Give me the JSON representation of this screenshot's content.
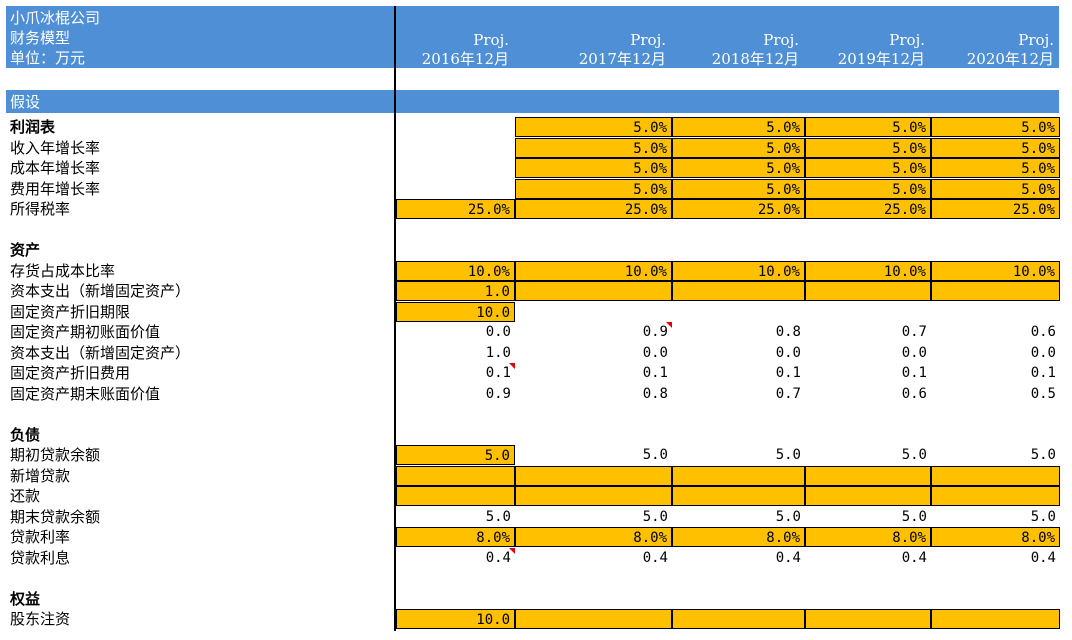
{
  "header": {
    "company": "小爪冰棍公司",
    "model": "财务模型",
    "unit": "单位：万元",
    "columns": [
      {
        "proj": "Proj.",
        "date": "2016年12月"
      },
      {
        "proj": "Proj.",
        "date": "2017年12月"
      },
      {
        "proj": "Proj.",
        "date": "2018年12月"
      },
      {
        "proj": "Proj.",
        "date": "2019年12月"
      },
      {
        "proj": "Proj.",
        "date": "2020年12月"
      }
    ]
  },
  "section_assumptions": "假设",
  "rows": [
    {
      "label": "利润表",
      "bold": true,
      "cells": [
        null,
        {
          "v": "5.0%",
          "in": true
        },
        {
          "v": "5.0%",
          "in": true
        },
        {
          "v": "5.0%",
          "in": true
        },
        {
          "v": "5.0%",
          "in": true
        }
      ]
    },
    {
      "label": "收入年增长率",
      "cells": [
        null,
        {
          "v": "5.0%",
          "in": true
        },
        {
          "v": "5.0%",
          "in": true
        },
        {
          "v": "5.0%",
          "in": true
        },
        {
          "v": "5.0%",
          "in": true
        }
      ]
    },
    {
      "label": "成本年增长率",
      "cells": [
        null,
        {
          "v": "5.0%",
          "in": true
        },
        {
          "v": "5.0%",
          "in": true
        },
        {
          "v": "5.0%",
          "in": true
        },
        {
          "v": "5.0%",
          "in": true
        }
      ]
    },
    {
      "label": "费用年增长率",
      "cells": [
        null,
        {
          "v": "5.0%",
          "in": true
        },
        {
          "v": "5.0%",
          "in": true
        },
        {
          "v": "5.0%",
          "in": true
        },
        {
          "v": "5.0%",
          "in": true
        }
      ]
    },
    {
      "label": "所得税率",
      "cells": [
        {
          "v": "25.0%",
          "in": true
        },
        {
          "v": "25.0%",
          "in": true
        },
        {
          "v": "25.0%",
          "in": true
        },
        {
          "v": "25.0%",
          "in": true
        },
        {
          "v": "25.0%",
          "in": true
        }
      ]
    },
    {
      "label": "",
      "cells": []
    },
    {
      "label": "资产",
      "bold": true,
      "cells": []
    },
    {
      "label": "存货占成本比率",
      "cells": [
        {
          "v": "10.0%",
          "in": true
        },
        {
          "v": "10.0%",
          "in": true
        },
        {
          "v": "10.0%",
          "in": true
        },
        {
          "v": "10.0%",
          "in": true
        },
        {
          "v": "10.0%",
          "in": true
        }
      ]
    },
    {
      "label": "资本支出（新增固定资产）",
      "cells": [
        {
          "v": "1.0",
          "in": true
        },
        {
          "v": "",
          "in": true
        },
        {
          "v": "",
          "in": true
        },
        {
          "v": "",
          "in": true
        },
        {
          "v": "",
          "in": true
        }
      ]
    },
    {
      "label": "固定资产折旧期限",
      "cells": [
        {
          "v": "10.0",
          "in": true
        }
      ]
    },
    {
      "label": "固定资产期初账面价值",
      "cells": [
        {
          "v": "0.0"
        },
        {
          "v": "0.9",
          "note": true
        },
        {
          "v": "0.8"
        },
        {
          "v": "0.7"
        },
        {
          "v": "0.6"
        }
      ]
    },
    {
      "label": "资本支出（新增固定资产）",
      "cells": [
        {
          "v": "1.0"
        },
        {
          "v": "0.0"
        },
        {
          "v": "0.0"
        },
        {
          "v": "0.0"
        },
        {
          "v": "0.0"
        }
      ]
    },
    {
      "label": "固定资产折旧费用",
      "cells": [
        {
          "v": "0.1",
          "note": true
        },
        {
          "v": "0.1"
        },
        {
          "v": "0.1"
        },
        {
          "v": "0.1"
        },
        {
          "v": "0.1"
        }
      ]
    },
    {
      "label": "固定资产期末账面价值",
      "cells": [
        {
          "v": "0.9"
        },
        {
          "v": "0.8"
        },
        {
          "v": "0.7"
        },
        {
          "v": "0.6"
        },
        {
          "v": "0.5"
        }
      ]
    },
    {
      "label": "",
      "cells": []
    },
    {
      "label": "负债",
      "bold": true,
      "cells": []
    },
    {
      "label": "期初贷款余额",
      "cells": [
        {
          "v": "5.0",
          "in": true
        },
        {
          "v": "5.0"
        },
        {
          "v": "5.0"
        },
        {
          "v": "5.0"
        },
        {
          "v": "5.0"
        }
      ]
    },
    {
      "label": "新增贷款",
      "cells": [
        {
          "v": "",
          "in": true
        },
        {
          "v": "",
          "in": true
        },
        {
          "v": "",
          "in": true
        },
        {
          "v": "",
          "in": true
        },
        {
          "v": "",
          "in": true
        }
      ]
    },
    {
      "label": "还款",
      "cells": [
        {
          "v": "",
          "in": true
        },
        {
          "v": "",
          "in": true
        },
        {
          "v": "",
          "in": true
        },
        {
          "v": "",
          "in": true
        },
        {
          "v": "",
          "in": true
        }
      ]
    },
    {
      "label": "期末贷款余额",
      "cells": [
        {
          "v": "5.0"
        },
        {
          "v": "5.0"
        },
        {
          "v": "5.0"
        },
        {
          "v": "5.0"
        },
        {
          "v": "5.0"
        }
      ]
    },
    {
      "label": "贷款利率",
      "cells": [
        {
          "v": "8.0%",
          "in": true
        },
        {
          "v": "8.0%",
          "in": true
        },
        {
          "v": "8.0%",
          "in": true
        },
        {
          "v": "8.0%",
          "in": true
        },
        {
          "v": "8.0%",
          "in": true
        }
      ]
    },
    {
      "label": "贷款利息",
      "cells": [
        {
          "v": "0.4",
          "note": true
        },
        {
          "v": "0.4"
        },
        {
          "v": "0.4"
        },
        {
          "v": "0.4"
        },
        {
          "v": "0.4"
        }
      ]
    },
    {
      "label": "",
      "cells": []
    },
    {
      "label": "权益",
      "bold": true,
      "cells": []
    },
    {
      "label": "股东注资",
      "cells": [
        {
          "v": "10.0",
          "in": true
        },
        {
          "v": "",
          "in": true
        },
        {
          "v": "",
          "in": true
        },
        {
          "v": "",
          "in": true
        },
        {
          "v": "",
          "in": true
        }
      ]
    }
  ]
}
